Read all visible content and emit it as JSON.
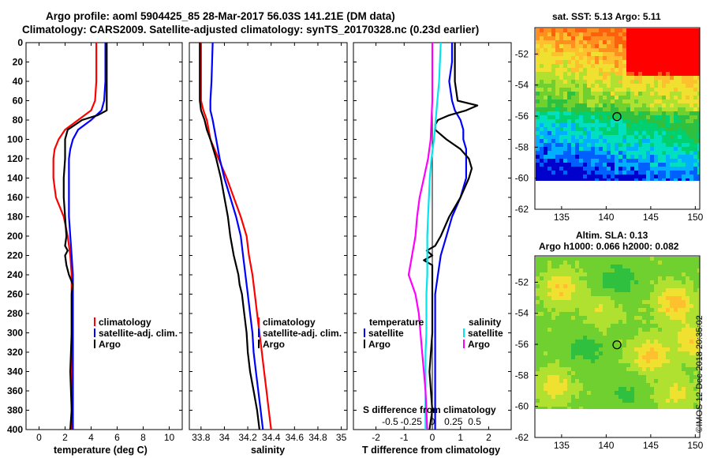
{
  "header": {
    "line1": "Argo profile: aoml 5904425_85 28-Mar-2017 56.03S 141.21E (DM data)",
    "line2": "Climatology: CARS2009. Satellite-adjusted climatology: synTS_20170328.nc (0.23d earlier)"
  },
  "colors": {
    "climatology": "#ff0000",
    "satellite": "#0000ff",
    "argo": "#000000",
    "sat_salinity": "#00e5ee",
    "argo_salinity": "#ff00ff"
  },
  "chart_data": [
    {
      "type": "line",
      "panel": "temperature",
      "xlabel": "temperature (deg C)",
      "ylabel": "",
      "xlim": [
        -1,
        11
      ],
      "ylim": [
        400,
        0
      ],
      "xticks": [
        "0",
        "2",
        "4",
        "6",
        "8",
        "10"
      ],
      "yticks": [
        "0",
        "20",
        "40",
        "60",
        "80",
        "100",
        "120",
        "140",
        "160",
        "180",
        "200",
        "220",
        "240",
        "260",
        "280",
        "300",
        "320",
        "340",
        "360",
        "380",
        "400"
      ],
      "legend": [
        "climatology",
        "satellite-adj. clim.",
        "Argo"
      ],
      "series": [
        {
          "name": "climatology",
          "depth": [
            0,
            20,
            40,
            60,
            70,
            80,
            90,
            100,
            110,
            120,
            140,
            160,
            170,
            180,
            200,
            220,
            240,
            260,
            300,
            340,
            380,
            400
          ],
          "values": [
            4.4,
            4.4,
            4.4,
            4.3,
            4.0,
            3.0,
            2.0,
            1.5,
            1.2,
            1.1,
            1.1,
            1.3,
            1.6,
            1.9,
            2.2,
            2.4,
            2.5,
            2.5,
            2.5,
            2.5,
            2.5,
            2.5
          ]
        },
        {
          "name": "satellite-adj. clim.",
          "depth": [
            0,
            20,
            40,
            60,
            70,
            80,
            90,
            100,
            110,
            120,
            140,
            180,
            200,
            220,
            240,
            260,
            300,
            340,
            380,
            400
          ],
          "values": [
            5.1,
            5.1,
            5.1,
            5.0,
            4.8,
            4.0,
            3.0,
            2.6,
            2.4,
            2.3,
            2.3,
            2.3,
            2.4,
            2.5,
            2.6,
            2.6,
            2.6,
            2.6,
            2.6,
            2.6
          ]
        },
        {
          "name": "Argo",
          "depth": [
            0,
            20,
            40,
            60,
            70,
            75,
            80,
            90,
            100,
            110,
            120,
            140,
            160,
            180,
            200,
            210,
            215,
            220,
            230,
            240,
            250,
            260,
            300,
            340,
            380,
            400
          ],
          "values": [
            5.2,
            5.2,
            5.2,
            5.2,
            5.2,
            4.5,
            3.3,
            2.2,
            2.0,
            2.0,
            2.0,
            1.9,
            1.9,
            2.0,
            2.1,
            2.0,
            2.2,
            2.0,
            2.1,
            2.3,
            2.6,
            2.5,
            2.5,
            2.4,
            2.5,
            2.4
          ]
        }
      ]
    },
    {
      "type": "line",
      "panel": "salinity",
      "xlabel": "salinity",
      "ylabel": "",
      "xlim": [
        33.7,
        35.05
      ],
      "ylim": [
        400,
        0
      ],
      "xticks": [
        "33.8",
        "34",
        "34.2",
        "34.4",
        "34.6",
        "34.8",
        "35"
      ],
      "legend": [
        "climatology",
        "satellite-adj. clim.",
        "Argo"
      ],
      "series": [
        {
          "name": "climatology",
          "depth": [
            0,
            40,
            60,
            70,
            80,
            100,
            120,
            140,
            160,
            180,
            200,
            220,
            240,
            260,
            280,
            300,
            320,
            340,
            360,
            380,
            400
          ],
          "values": [
            33.8,
            33.8,
            33.8,
            33.82,
            33.85,
            33.88,
            33.95,
            34.02,
            34.08,
            34.14,
            34.19,
            34.21,
            34.24,
            34.26,
            34.28,
            34.3,
            34.32,
            34.34,
            34.36,
            34.38,
            34.4
          ]
        },
        {
          "name": "satellite-adj. clim.",
          "depth": [
            0,
            40,
            60,
            70,
            80,
            100,
            120,
            140,
            160,
            180,
            200,
            220,
            240,
            260,
            280,
            300,
            320,
            340,
            360,
            380,
            400
          ],
          "values": [
            33.9,
            33.89,
            33.88,
            33.88,
            33.9,
            33.93,
            33.96,
            34.0,
            34.05,
            34.1,
            34.14,
            34.16,
            34.18,
            34.2,
            34.22,
            34.24,
            34.25,
            34.27,
            34.29,
            34.31,
            34.33
          ]
        },
        {
          "name": "Argo",
          "depth": [
            0,
            40,
            60,
            70,
            80,
            90,
            100,
            120,
            140,
            160,
            180,
            200,
            220,
            240,
            250,
            260,
            280,
            300,
            320,
            340,
            360,
            380,
            400
          ],
          "values": [
            33.79,
            33.79,
            33.79,
            33.8,
            33.83,
            33.85,
            33.88,
            33.93,
            33.97,
            34.0,
            34.03,
            34.05,
            34.08,
            34.12,
            34.13,
            34.15,
            34.17,
            34.19,
            34.2,
            34.22,
            34.25,
            34.28,
            34.3
          ]
        }
      ]
    },
    {
      "type": "line",
      "panel": "difference",
      "xlabel": "T difference from climatology",
      "ylabel": "",
      "xlim": [
        -2.8,
        2.8
      ],
      "ylim": [
        400,
        0
      ],
      "xticks": [
        "-2",
        "-1",
        "0",
        "1",
        "2"
      ],
      "x2label": "S difference from climatology",
      "x2ticks": [
        "-0.5",
        "-0.25",
        "0",
        "0.25",
        "0.5"
      ],
      "legend_temperature_title": "temperature",
      "legend_temperature": [
        "satellite",
        "Argo"
      ],
      "legend_salinity_title": "salinity",
      "legend_salinity": [
        "satellite",
        "Argo"
      ],
      "series": [
        {
          "name": "satellite",
          "kind": "temperature",
          "depth": [
            0,
            20,
            40,
            60,
            70,
            80,
            90,
            100,
            110,
            120,
            140,
            160,
            180,
            200,
            220,
            240,
            260,
            300,
            340,
            380,
            400
          ],
          "values": [
            0.7,
            0.7,
            0.6,
            0.7,
            0.8,
            1.0,
            1.1,
            1.1,
            1.2,
            1.2,
            1.2,
            1.0,
            0.7,
            0.5,
            0.3,
            0.2,
            0.1,
            0.1,
            0.1,
            0.1,
            0.1
          ]
        },
        {
          "name": "Argo",
          "kind": "temperature",
          "depth": [
            0,
            20,
            40,
            60,
            65,
            70,
            75,
            80,
            85,
            90,
            100,
            110,
            120,
            130,
            140,
            160,
            180,
            200,
            210,
            215,
            220,
            225,
            230,
            240,
            250,
            260,
            300,
            340,
            380,
            400
          ],
          "values": [
            0.8,
            0.8,
            0.8,
            0.9,
            1.6,
            1.2,
            0.6,
            0.2,
            0.1,
            0.1,
            0.5,
            1.0,
            1.3,
            1.4,
            1.3,
            1.0,
            0.6,
            0.3,
            0.1,
            -0.2,
            0.0,
            -0.3,
            0.0,
            0.0,
            0.0,
            0.0,
            0.0,
            -0.1,
            0.0,
            -0.1
          ]
        },
        {
          "name": "satellite",
          "kind": "salinity",
          "depth": [
            0,
            40,
            60,
            80,
            100,
            120,
            140,
            160,
            180,
            200,
            220,
            240,
            260,
            280,
            300,
            320,
            340,
            360,
            380,
            400
          ],
          "values": [
            0.1,
            0.08,
            0.06,
            0.04,
            0.02,
            -0.01,
            -0.03,
            -0.04,
            -0.05,
            -0.06,
            -0.06,
            -0.06,
            -0.07,
            -0.07,
            -0.07,
            -0.08,
            -0.08,
            -0.08,
            -0.08,
            -0.08
          ]
        },
        {
          "name": "Argo",
          "kind": "salinity",
          "depth": [
            0,
            40,
            60,
            80,
            100,
            120,
            140,
            160,
            180,
            200,
            220,
            240,
            260,
            280,
            300,
            320,
            340,
            360,
            380,
            400
          ],
          "values": [
            0.0,
            0.0,
            0.0,
            -0.01,
            -0.02,
            -0.05,
            -0.1,
            -0.15,
            -0.18,
            -0.2,
            -0.24,
            -0.28,
            -0.2,
            -0.16,
            -0.14,
            -0.12,
            -0.1,
            -0.08,
            -0.07,
            -0.06
          ]
        }
      ]
    },
    {
      "type": "heatmap",
      "panel": "sst-map",
      "title": "sat. SST: 5.13 Argo: 5.11",
      "xlim": [
        132,
        150.5
      ],
      "ylim": [
        -62,
        -50.3
      ],
      "xticks": [
        "135",
        "140",
        "145",
        "150"
      ],
      "yticks": [
        "-52",
        "-54",
        "-56",
        "-58",
        "-60",
        "-62"
      ],
      "marker": {
        "lon": 141.21,
        "lat": -56.03
      }
    },
    {
      "type": "heatmap",
      "panel": "sla-map",
      "title": "Altim. SLA: 0.13",
      "subtitle": "Argo h1000: 0.066 h2000: 0.082",
      "xlim": [
        132,
        150.5
      ],
      "ylim": [
        -62,
        -50.3
      ],
      "xticks": [
        "135",
        "140",
        "145",
        "150"
      ],
      "yticks": [
        "-52",
        "-54",
        "-56",
        "-58",
        "-60",
        "-62"
      ],
      "marker": {
        "lon": 141.21,
        "lat": -56.03
      }
    }
  ],
  "credit": "©IMOS 12-Dec-2018 20:35:02"
}
